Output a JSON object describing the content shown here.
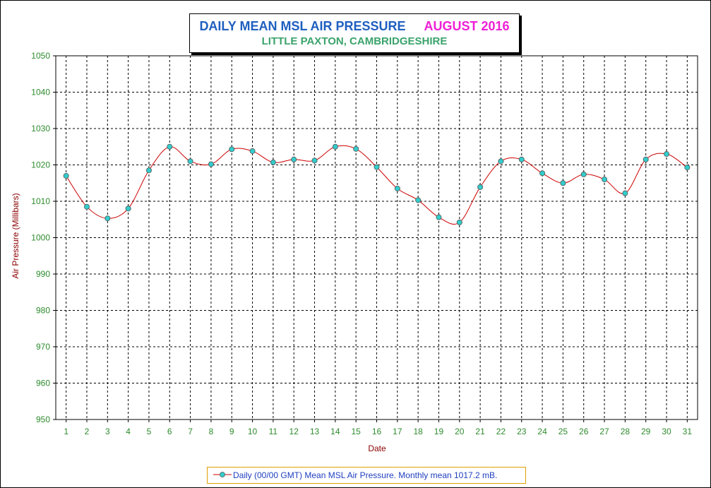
{
  "chart_data": {
    "type": "line",
    "title": "DAILY MEAN MSL AIR PRESSURE",
    "title_month": "AUGUST 2016",
    "subtitle": "LITTLE PAXTON, CAMBRIDGESHIRE",
    "xlabel": "Date",
    "ylabel": "Air Pressure (Millibars)",
    "ylim": [
      950,
      1050
    ],
    "ytick_step": 10,
    "x": [
      1,
      2,
      3,
      4,
      5,
      6,
      7,
      8,
      9,
      10,
      11,
      12,
      13,
      14,
      15,
      16,
      17,
      18,
      19,
      20,
      21,
      22,
      23,
      24,
      25,
      26,
      27,
      28,
      29,
      30,
      31
    ],
    "series": [
      {
        "name": "Daily (00/00 GMT) Mean MSL Air Pressure. Monthly mean 1017.2 mB.",
        "values": [
          1017.0,
          1008.5,
          1005.3,
          1008.0,
          1018.5,
          1025.0,
          1021.0,
          1020.2,
          1024.3,
          1023.8,
          1020.7,
          1021.5,
          1021.2,
          1025.0,
          1024.4,
          1019.4,
          1013.5,
          1010.3,
          1005.6,
          1004.2,
          1013.9,
          1021.0,
          1021.5,
          1017.7,
          1015.0,
          1017.4,
          1016.0,
          1012.2,
          1021.5,
          1023.0,
          1019.3
        ],
        "line_color": "#cc0000",
        "marker_color": "#33cccc"
      }
    ],
    "grid": true,
    "legend_position": "bottom-center"
  }
}
